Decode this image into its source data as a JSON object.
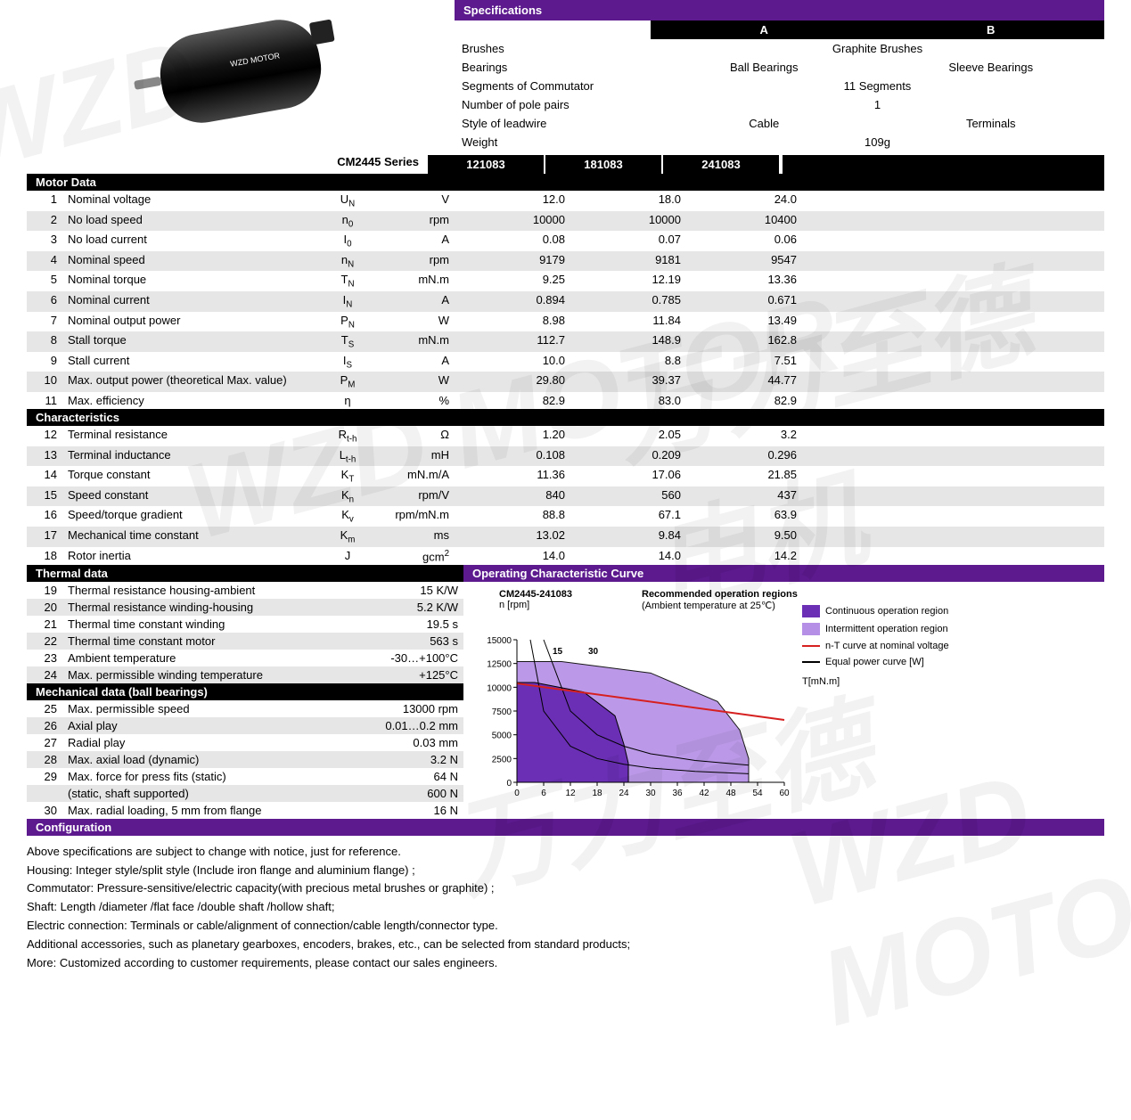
{
  "colors": {
    "purple": "#5c1a8e",
    "black": "#000000",
    "grey_row": "#e6e6e6",
    "chart_continuous": "#6a2fb5",
    "chart_intermittent": "#b58fe6",
    "chart_nT_line": "#d62020",
    "chart_power_line": "#000000",
    "white": "#ffffff"
  },
  "typography": {
    "base_font_size_pt": 10,
    "header_bold": true
  },
  "motor_image_label": "WZD MOTOR",
  "spec": {
    "header": "Specifications",
    "col_a": "A",
    "col_b": "B",
    "rows": [
      {
        "label": "Brushes",
        "a": "",
        "b": "Graphite Brushes",
        "center": "Graphite Brushes",
        "mode": "center"
      },
      {
        "label": "Bearings",
        "a": "Ball Bearings",
        "b": "Sleeve Bearings",
        "mode": "ab"
      },
      {
        "label": "Segments of Commutator",
        "center": "11 Segments",
        "mode": "center"
      },
      {
        "label": "Number of pole pairs",
        "center": "1",
        "mode": "center"
      },
      {
        "label": "Style of leadwire",
        "a": "Cable",
        "b": "Terminals",
        "mode": "ab"
      },
      {
        "label": "Weight",
        "center": "109g",
        "mode": "center"
      }
    ]
  },
  "series": {
    "label": "CM2445 Series",
    "cols": [
      "121083",
      "181083",
      "241083"
    ]
  },
  "motor_data": {
    "header": "Motor Data",
    "rows": [
      {
        "n": "1",
        "name": "Nominal voltage",
        "sym": "U",
        "sub": "N",
        "unit": "V",
        "v": [
          "12.0",
          "18.0",
          "24.0"
        ]
      },
      {
        "n": "2",
        "name": "No load speed",
        "sym": "n",
        "sub": "0",
        "unit": "rpm",
        "v": [
          "10000",
          "10000",
          "10400"
        ]
      },
      {
        "n": "3",
        "name": "No load current",
        "sym": "I",
        "sub": "0",
        "unit": "A",
        "v": [
          "0.08",
          "0.07",
          "0.06"
        ]
      },
      {
        "n": "4",
        "name": "Nominal speed",
        "sym": "n",
        "sub": "N",
        "unit": "rpm",
        "v": [
          "9179",
          "9181",
          "9547"
        ]
      },
      {
        "n": "5",
        "name": "Nominal torque",
        "sym": "T",
        "sub": "N",
        "unit": "mN.m",
        "v": [
          "9.25",
          "12.19",
          "13.36"
        ]
      },
      {
        "n": "6",
        "name": "Nominal current",
        "sym": "I",
        "sub": "N",
        "unit": "A",
        "v": [
          "0.894",
          "0.785",
          "0.671"
        ]
      },
      {
        "n": "7",
        "name": "Nominal output power",
        "sym": "P",
        "sub": "N",
        "unit": "W",
        "v": [
          "8.98",
          "11.84",
          "13.49"
        ]
      },
      {
        "n": "8",
        "name": "Stall torque",
        "sym": "T",
        "sub": "S",
        "unit": "mN.m",
        "v": [
          "112.7",
          "148.9",
          "162.8"
        ]
      },
      {
        "n": "9",
        "name": "Stall current",
        "sym": "I",
        "sub": "S",
        "unit": "A",
        "v": [
          "10.0",
          "8.8",
          "7.51"
        ]
      },
      {
        "n": "10",
        "name": "Max. output power (theoretical Max. value)",
        "sym": "P",
        "sub": "M",
        "unit": "W",
        "v": [
          "29.80",
          "39.37",
          "44.77"
        ]
      },
      {
        "n": "11",
        "name": "Max. efficiency",
        "sym": "η",
        "sub": "",
        "unit": "%",
        "v": [
          "82.9",
          "83.0",
          "82.9"
        ]
      }
    ]
  },
  "characteristics": {
    "header": "Characteristics",
    "rows": [
      {
        "n": "12",
        "name": "Terminal resistance",
        "sym": "R",
        "sub": "t-h",
        "unit": "Ω",
        "v": [
          "1.20",
          "2.05",
          "3.2"
        ]
      },
      {
        "n": "13",
        "name": "Terminal inductance",
        "sym": "L",
        "sub": "t-h",
        "unit": "mH",
        "v": [
          "0.108",
          "0.209",
          "0.296"
        ]
      },
      {
        "n": "14",
        "name": "Torque constant",
        "sym": "K",
        "sub": "T",
        "unit": "mN.m/A",
        "v": [
          "11.36",
          "17.06",
          "21.85"
        ]
      },
      {
        "n": "15",
        "name": "Speed constant",
        "sym": "K",
        "sub": "n",
        "unit": "rpm/V",
        "v": [
          "840",
          "560",
          "437"
        ]
      },
      {
        "n": "16",
        "name": "Speed/torque gradient",
        "sym": "K",
        "sub": "v",
        "unit": "rpm/mN.m",
        "v": [
          "88.8",
          "67.1",
          "63.9"
        ]
      },
      {
        "n": "17",
        "name": "Mechanical time constant",
        "sym": "K",
        "sub": "m",
        "unit": "ms",
        "v": [
          "13.02",
          "9.84",
          "9.50"
        ]
      },
      {
        "n": "18",
        "name": "Rotor inertia",
        "sym": "J",
        "sub": "",
        "unit": "gcm²",
        "sup": true,
        "v": [
          "14.0",
          "14.0",
          "14.2"
        ]
      }
    ]
  },
  "thermal": {
    "header": "Thermal data",
    "rows": [
      {
        "n": "19",
        "name": "Thermal resistance housing-ambient",
        "val": "15 K/W"
      },
      {
        "n": "20",
        "name": "Thermal resistance winding-housing",
        "val": "5.2 K/W"
      },
      {
        "n": "21",
        "name": "Thermal time constant winding",
        "val": "19.5 s"
      },
      {
        "n": "22",
        "name": "Thermal time constant motor",
        "val": "563 s"
      },
      {
        "n": "23",
        "name": "Ambient temperature",
        "val": "-30…+100°C"
      },
      {
        "n": "24",
        "name": "Max. permissible winding temperature",
        "val": "+125°C"
      }
    ]
  },
  "mechanical": {
    "header": "Mechanical data (ball bearings)",
    "rows": [
      {
        "n": "25",
        "name": "Max. permissible speed",
        "val": "13000 rpm"
      },
      {
        "n": "26",
        "name": "Axial play",
        "val": "0.01…0.2 mm"
      },
      {
        "n": "27",
        "name": "Radial play",
        "val": "0.03  mm"
      },
      {
        "n": "28",
        "name": "Max. axial load (dynamic)",
        "val": "3.2 N"
      },
      {
        "n": "29",
        "name": "Max. force for press fits (static)",
        "val": "64 N"
      },
      {
        "n": "",
        "name": "(static, shaft supported)",
        "val": "600 N"
      },
      {
        "n": "30",
        "name": "Max. radial loading, 5 mm from flange",
        "val": "16 N"
      }
    ]
  },
  "configuration_header": "Configuration",
  "configuration_lines": [
    "Above specifications are subject to change with notice, just for reference.",
    "Housing: Integer style/split style (Include iron flange and aluminium flange) ;",
    "Commutator: Pressure-sensitive/electric capacity(with precious metal brushes or graphite) ;",
    "Shaft: Length /diameter /flat face /double shaft /hollow shaft;",
    "Electric connection: Terminals or cable/alignment of connection/cable length/connector type.",
    "Additional accessories, such as planetary gearboxes, encoders, brakes, etc., can be selected from standard products;",
    "More: Customized according to customer requirements, please contact our sales engineers."
  ],
  "chart": {
    "header": "Operating Characteristic Curve",
    "title": "CM2445-241083",
    "subtitle": "n [rpm]",
    "rec_title": "Recommended operation regions",
    "rec_sub": "(Ambient temperature at 25℃)",
    "x_axis_label": "T[mN.m]",
    "xlim": [
      0,
      60
    ],
    "ylim": [
      0,
      15000
    ],
    "xticks": [
      0,
      6,
      12,
      18,
      24,
      30,
      36,
      42,
      48,
      54,
      60
    ],
    "yticks": [
      0,
      2500,
      5000,
      7500,
      10000,
      12500,
      15000
    ],
    "inner_labels": [
      "15",
      "30"
    ],
    "continuous_region": {
      "color": "#6a2fb5",
      "points": [
        [
          0,
          0
        ],
        [
          0,
          10500
        ],
        [
          4,
          10500
        ],
        [
          15,
          9500
        ],
        [
          22,
          7000
        ],
        [
          24,
          4000
        ],
        [
          25,
          2000
        ],
        [
          25,
          0
        ]
      ]
    },
    "intermittent_region": {
      "color": "#b58fe6",
      "points": [
        [
          0,
          0
        ],
        [
          0,
          12700
        ],
        [
          10,
          12700
        ],
        [
          30,
          11500
        ],
        [
          45,
          8500
        ],
        [
          50,
          5500
        ],
        [
          52,
          2500
        ],
        [
          52,
          0
        ]
      ]
    },
    "nT_line": {
      "color": "#d62020",
      "width": 2,
      "points": [
        [
          0,
          10400
        ],
        [
          60,
          6560
        ]
      ]
    },
    "power_curves": {
      "color": "#000000",
      "width": 1,
      "curves": [
        [
          [
            3,
            15000
          ],
          [
            6,
            7500
          ],
          [
            12,
            3800
          ],
          [
            18,
            2500
          ],
          [
            24,
            1900
          ],
          [
            30,
            1500
          ],
          [
            40,
            1150
          ],
          [
            52,
            900
          ]
        ],
        [
          [
            6,
            15000
          ],
          [
            12,
            7500
          ],
          [
            18,
            5000
          ],
          [
            24,
            3800
          ],
          [
            30,
            3000
          ],
          [
            40,
            2300
          ],
          [
            52,
            1800
          ]
        ]
      ]
    },
    "legend": [
      {
        "type": "swatch",
        "color": "#6a2fb5",
        "label": "Continuous operation region"
      },
      {
        "type": "swatch",
        "color": "#b58fe6",
        "label": "Intermittent operation region"
      },
      {
        "type": "line",
        "color": "#d62020",
        "label": "n-T curve at nominal voltage"
      },
      {
        "type": "line",
        "color": "#000000",
        "label": "Equal power curve [W]"
      }
    ]
  }
}
